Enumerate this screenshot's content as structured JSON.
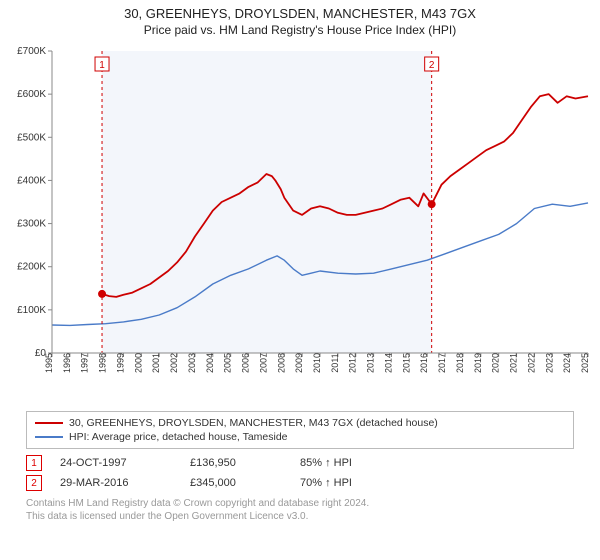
{
  "title_line1": "30, GREENHEYS, DROYLSDEN, MANCHESTER, M43 7GX",
  "title_line2": "Price paid vs. HM Land Registry's House Price Index (HPI)",
  "chart": {
    "type": "line",
    "background_color": "#ffffff",
    "plot_border_color": "#888888",
    "axis_tick_color": "#888888",
    "shade_fill": "#f3f6fb",
    "shade_x_start": 1997.8,
    "shade_x_end": 2016.25,
    "xlim": [
      1995,
      2025
    ],
    "ylim": [
      0,
      700000
    ],
    "y_ticks": [
      0,
      100000,
      200000,
      300000,
      400000,
      500000,
      600000,
      700000
    ],
    "y_tick_labels": [
      "£0",
      "£100K",
      "£200K",
      "£300K",
      "£400K",
      "£500K",
      "£600K",
      "£700K"
    ],
    "x_ticks": [
      1995,
      1996,
      1997,
      1998,
      1999,
      2000,
      2001,
      2002,
      2003,
      2004,
      2005,
      2006,
      2007,
      2008,
      2009,
      2010,
      2011,
      2012,
      2013,
      2014,
      2015,
      2016,
      2017,
      2018,
      2019,
      2020,
      2021,
      2022,
      2023,
      2024,
      2025
    ],
    "label_fontsize": 10,
    "series": [
      {
        "name": "property",
        "label": "30, GREENHEYS, DROYLSDEN, MANCHESTER, M43 7GX (detached house)",
        "color": "#cc0000",
        "width": 1.8,
        "points": [
          [
            1997.8,
            136950
          ],
          [
            1998.2,
            132000
          ],
          [
            1998.6,
            130000
          ],
          [
            1999.0,
            135000
          ],
          [
            1999.5,
            140000
          ],
          [
            2000.0,
            150000
          ],
          [
            2000.5,
            160000
          ],
          [
            2001.0,
            175000
          ],
          [
            2001.5,
            190000
          ],
          [
            2002.0,
            210000
          ],
          [
            2002.5,
            235000
          ],
          [
            2003.0,
            270000
          ],
          [
            2003.5,
            300000
          ],
          [
            2004.0,
            330000
          ],
          [
            2004.5,
            350000
          ],
          [
            2005.0,
            360000
          ],
          [
            2005.5,
            370000
          ],
          [
            2006.0,
            385000
          ],
          [
            2006.5,
            395000
          ],
          [
            2007.0,
            415000
          ],
          [
            2007.3,
            410000
          ],
          [
            2007.5,
            400000
          ],
          [
            2007.8,
            380000
          ],
          [
            2008.0,
            360000
          ],
          [
            2008.5,
            330000
          ],
          [
            2009.0,
            320000
          ],
          [
            2009.5,
            335000
          ],
          [
            2010.0,
            340000
          ],
          [
            2010.5,
            335000
          ],
          [
            2011.0,
            325000
          ],
          [
            2011.5,
            320000
          ],
          [
            2012.0,
            320000
          ],
          [
            2012.5,
            325000
          ],
          [
            2013.0,
            330000
          ],
          [
            2013.5,
            335000
          ],
          [
            2014.0,
            345000
          ],
          [
            2014.5,
            355000
          ],
          [
            2015.0,
            360000
          ],
          [
            2015.5,
            340000
          ],
          [
            2015.8,
            370000
          ],
          [
            2016.25,
            345000
          ],
          [
            2016.8,
            390000
          ],
          [
            2017.3,
            410000
          ],
          [
            2017.8,
            425000
          ],
          [
            2018.3,
            440000
          ],
          [
            2018.8,
            455000
          ],
          [
            2019.3,
            470000
          ],
          [
            2019.8,
            480000
          ],
          [
            2020.3,
            490000
          ],
          [
            2020.8,
            510000
          ],
          [
            2021.3,
            540000
          ],
          [
            2021.8,
            570000
          ],
          [
            2022.3,
            595000
          ],
          [
            2022.8,
            600000
          ],
          [
            2023.3,
            580000
          ],
          [
            2023.8,
            595000
          ],
          [
            2024.3,
            590000
          ],
          [
            2025.0,
            595000
          ]
        ]
      },
      {
        "name": "hpi",
        "label": "HPI: Average price, detached house, Tameside",
        "color": "#4a7bc8",
        "width": 1.4,
        "points": [
          [
            1995.0,
            65000
          ],
          [
            1996.0,
            64000
          ],
          [
            1997.0,
            66000
          ],
          [
            1998.0,
            68000
          ],
          [
            1999.0,
            72000
          ],
          [
            2000.0,
            78000
          ],
          [
            2001.0,
            88000
          ],
          [
            2002.0,
            105000
          ],
          [
            2003.0,
            130000
          ],
          [
            2004.0,
            160000
          ],
          [
            2005.0,
            180000
          ],
          [
            2006.0,
            195000
          ],
          [
            2007.0,
            215000
          ],
          [
            2007.6,
            225000
          ],
          [
            2008.0,
            215000
          ],
          [
            2008.5,
            195000
          ],
          [
            2009.0,
            180000
          ],
          [
            2009.5,
            185000
          ],
          [
            2010.0,
            190000
          ],
          [
            2011.0,
            185000
          ],
          [
            2012.0,
            183000
          ],
          [
            2013.0,
            185000
          ],
          [
            2014.0,
            195000
          ],
          [
            2015.0,
            205000
          ],
          [
            2016.0,
            215000
          ],
          [
            2017.0,
            230000
          ],
          [
            2018.0,
            245000
          ],
          [
            2019.0,
            260000
          ],
          [
            2020.0,
            275000
          ],
          [
            2021.0,
            300000
          ],
          [
            2022.0,
            335000
          ],
          [
            2023.0,
            345000
          ],
          [
            2024.0,
            340000
          ],
          [
            2025.0,
            348000
          ]
        ]
      }
    ],
    "sale_markers": [
      {
        "n": "1",
        "x": 1997.8,
        "y": 136950,
        "color": "#d00000"
      },
      {
        "n": "2",
        "x": 2016.25,
        "y": 345000,
        "color": "#d00000"
      }
    ],
    "marker_dash_color": "#d00000",
    "marker_dash_pattern": "3,3",
    "marker_box_fill": "#ffffff",
    "marker_box_stroke": "#d00000",
    "marker_dot_radius": 4
  },
  "legend": {
    "items": [
      {
        "color": "#cc0000",
        "label": "30, GREENHEYS, DROYLSDEN, MANCHESTER, M43 7GX (detached house)"
      },
      {
        "color": "#4a7bc8",
        "label": "HPI: Average price, detached house, Tameside"
      }
    ]
  },
  "sales": [
    {
      "n": "1",
      "date": "24-OCT-1997",
      "price": "£136,950",
      "hpi": "85% ↑ HPI"
    },
    {
      "n": "2",
      "date": "29-MAR-2016",
      "price": "£345,000",
      "hpi": "70% ↑ HPI"
    }
  ],
  "footer_line1": "Contains HM Land Registry data © Crown copyright and database right 2024.",
  "footer_line2": "This data is licensed under the Open Government Licence v3.0."
}
